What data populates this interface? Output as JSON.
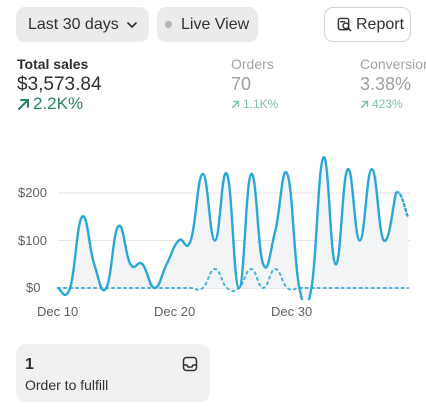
{
  "toolbar": {
    "date_range_label": "Last 30 days",
    "live_view_label": "Live View",
    "report_label": "Report"
  },
  "metrics": [
    {
      "label": "Total sales",
      "value": "$3,573.84",
      "delta": "2.2K%"
    },
    {
      "label": "Orders",
      "value": "70",
      "delta": "1.1K%"
    },
    {
      "label": "Conversion",
      "value": "3.38%",
      "delta": "423%"
    }
  ],
  "colors": {
    "positive": "#29845a",
    "positive_muted": "#80c1a4",
    "line": "#2aa7d6",
    "area": "#f3f4f5",
    "grid": "#e5e5e5"
  },
  "chart_data": {
    "type": "line",
    "ylabel": "",
    "xlabel": "",
    "ylim": [
      0,
      280
    ],
    "y_ticks": [
      "$200",
      "$100",
      "$0"
    ],
    "y_tick_values": [
      200,
      100,
      0
    ],
    "x_ticks": [
      "Dec 10",
      "Dec 20",
      "Dec 30"
    ],
    "x_tick_index": [
      2,
      12,
      22
    ],
    "series": [
      {
        "style": "solid",
        "x": [
          0,
          1,
          2,
          3,
          4,
          5,
          6,
          7,
          8,
          9,
          10,
          11,
          12,
          13,
          14,
          15,
          16,
          17,
          18,
          19,
          20,
          21,
          22,
          23,
          24,
          25,
          26,
          27,
          28,
          29
        ],
        "values": [
          0,
          0,
          150,
          50,
          0,
          130,
          50,
          50,
          0,
          50,
          100,
          100,
          240,
          100,
          240,
          0,
          240,
          50,
          120,
          240,
          0,
          0,
          275,
          50,
          250,
          100,
          250,
          100,
          200,
          150
        ]
      },
      {
        "style": "dotted",
        "note_series": "comparison",
        "x": [
          0,
          1,
          2,
          3,
          4,
          5,
          6,
          7,
          8,
          9,
          10,
          11,
          12,
          13,
          14,
          15,
          16,
          17,
          18,
          19,
          20,
          21,
          22,
          23,
          24,
          25,
          26,
          27,
          28,
          29
        ],
        "values": [
          0,
          0,
          0,
          0,
          0,
          0,
          0,
          0,
          0,
          0,
          0,
          0,
          0,
          40,
          0,
          0,
          40,
          0,
          40,
          0,
          0,
          0,
          0,
          0,
          0,
          0,
          0,
          0,
          0,
          0
        ]
      }
    ]
  },
  "fulfill_card": {
    "count": "1",
    "label": "Order to fulfill"
  }
}
